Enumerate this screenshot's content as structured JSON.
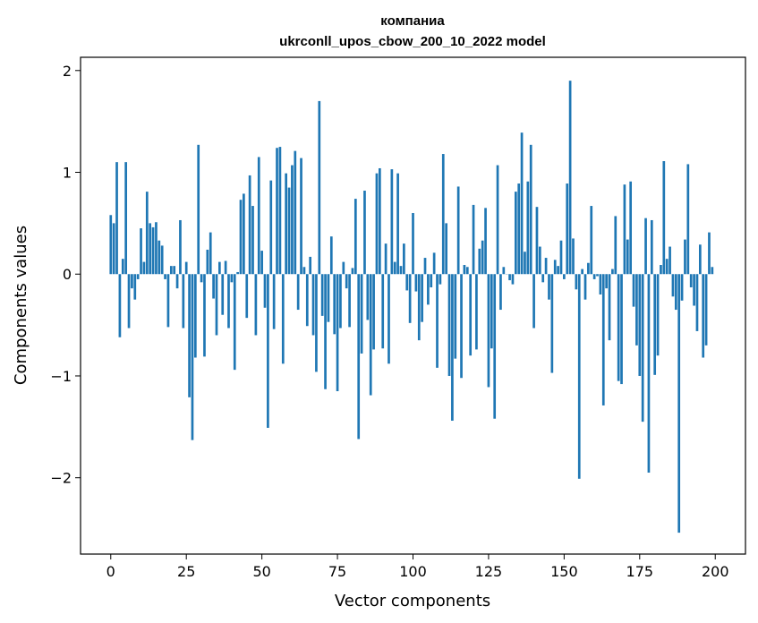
{
  "chart_data": {
    "type": "bar",
    "title_line1": "компаниа",
    "title_line2": "ukrconll_upos_cbow_200_10_2022 model",
    "xlabel": "Vector components",
    "ylabel": "Components values",
    "xlim": [
      -10,
      210
    ],
    "ylim": [
      -2.75,
      2.13
    ],
    "xticks": [
      0,
      25,
      50,
      75,
      100,
      125,
      150,
      175,
      200
    ],
    "yticks": [
      2,
      1,
      0,
      -1,
      -2
    ],
    "ytick_labels": [
      "2",
      "1",
      "0",
      "−1",
      "−2"
    ],
    "grid": false,
    "bar_color": "#1f77b4",
    "values": [
      0.58,
      0.5,
      1.1,
      -0.62,
      0.15,
      1.1,
      -0.53,
      -0.14,
      -0.25,
      -0.05,
      0.45,
      0.12,
      0.81,
      0.5,
      0.46,
      0.51,
      0.33,
      0.28,
      -0.05,
      -0.52,
      0.08,
      0.08,
      -0.14,
      0.53,
      -0.53,
      0.12,
      -1.21,
      -1.63,
      -0.82,
      1.27,
      -0.08,
      -0.81,
      0.24,
      0.41,
      -0.24,
      -0.6,
      0.12,
      -0.4,
      0.13,
      -0.53,
      -0.08,
      -0.94,
      0.02,
      0.73,
      0.79,
      -0.43,
      0.97,
      0.67,
      -0.6,
      1.15,
      0.23,
      -0.33,
      -1.51,
      0.92,
      -0.54,
      1.24,
      1.25,
      -0.88,
      0.99,
      0.85,
      1.07,
      1.21,
      -0.35,
      1.14,
      0.07,
      -0.51,
      0.17,
      -0.6,
      -0.96,
      1.7,
      -0.41,
      -1.13,
      -0.47,
      0.37,
      -0.59,
      -1.15,
      -0.53,
      0.12,
      -0.14,
      -0.52,
      0.06,
      0.74,
      -1.62,
      -0.78,
      0.82,
      -0.45,
      -1.19,
      -0.74,
      0.99,
      1.04,
      -0.73,
      0.3,
      -0.88,
      1.03,
      0.12,
      0.99,
      0.08,
      0.3,
      -0.16,
      -0.48,
      0.6,
      -0.17,
      -0.65,
      -0.47,
      0.16,
      -0.3,
      -0.13,
      0.21,
      -0.92,
      -0.1,
      1.18,
      0.5,
      -1.0,
      -1.44,
      -0.83,
      0.86,
      -1.02,
      0.09,
      0.07,
      -0.8,
      0.68,
      -0.74,
      0.25,
      0.33,
      0.65,
      -1.11,
      -0.73,
      -1.42,
      1.07,
      -0.35,
      0.07,
      0.0,
      -0.06,
      -0.1,
      0.81,
      0.89,
      1.39,
      0.22,
      0.91,
      1.27,
      -0.53,
      0.66,
      0.27,
      -0.08,
      0.16,
      -0.25,
      -0.97,
      0.14,
      0.08,
      0.33,
      -0.05,
      0.89,
      1.9,
      0.35,
      -0.15,
      -2.01,
      0.05,
      -0.25,
      0.11,
      0.67,
      -0.05,
      -0.02,
      -0.2,
      -1.29,
      -0.14,
      -0.65,
      0.05,
      0.57,
      -1.05,
      -1.08,
      0.88,
      0.34,
      0.91,
      -0.32,
      -0.7,
      -1.0,
      -1.45,
      0.55,
      -1.95,
      0.53,
      -0.99,
      -0.8,
      0.09,
      1.11,
      0.15,
      0.27,
      -0.22,
      -0.35,
      -2.54,
      -0.26,
      0.34,
      1.08,
      -0.13,
      -0.31,
      -0.56,
      0.29,
      -0.82,
      -0.7,
      0.41,
      0.07
    ]
  }
}
